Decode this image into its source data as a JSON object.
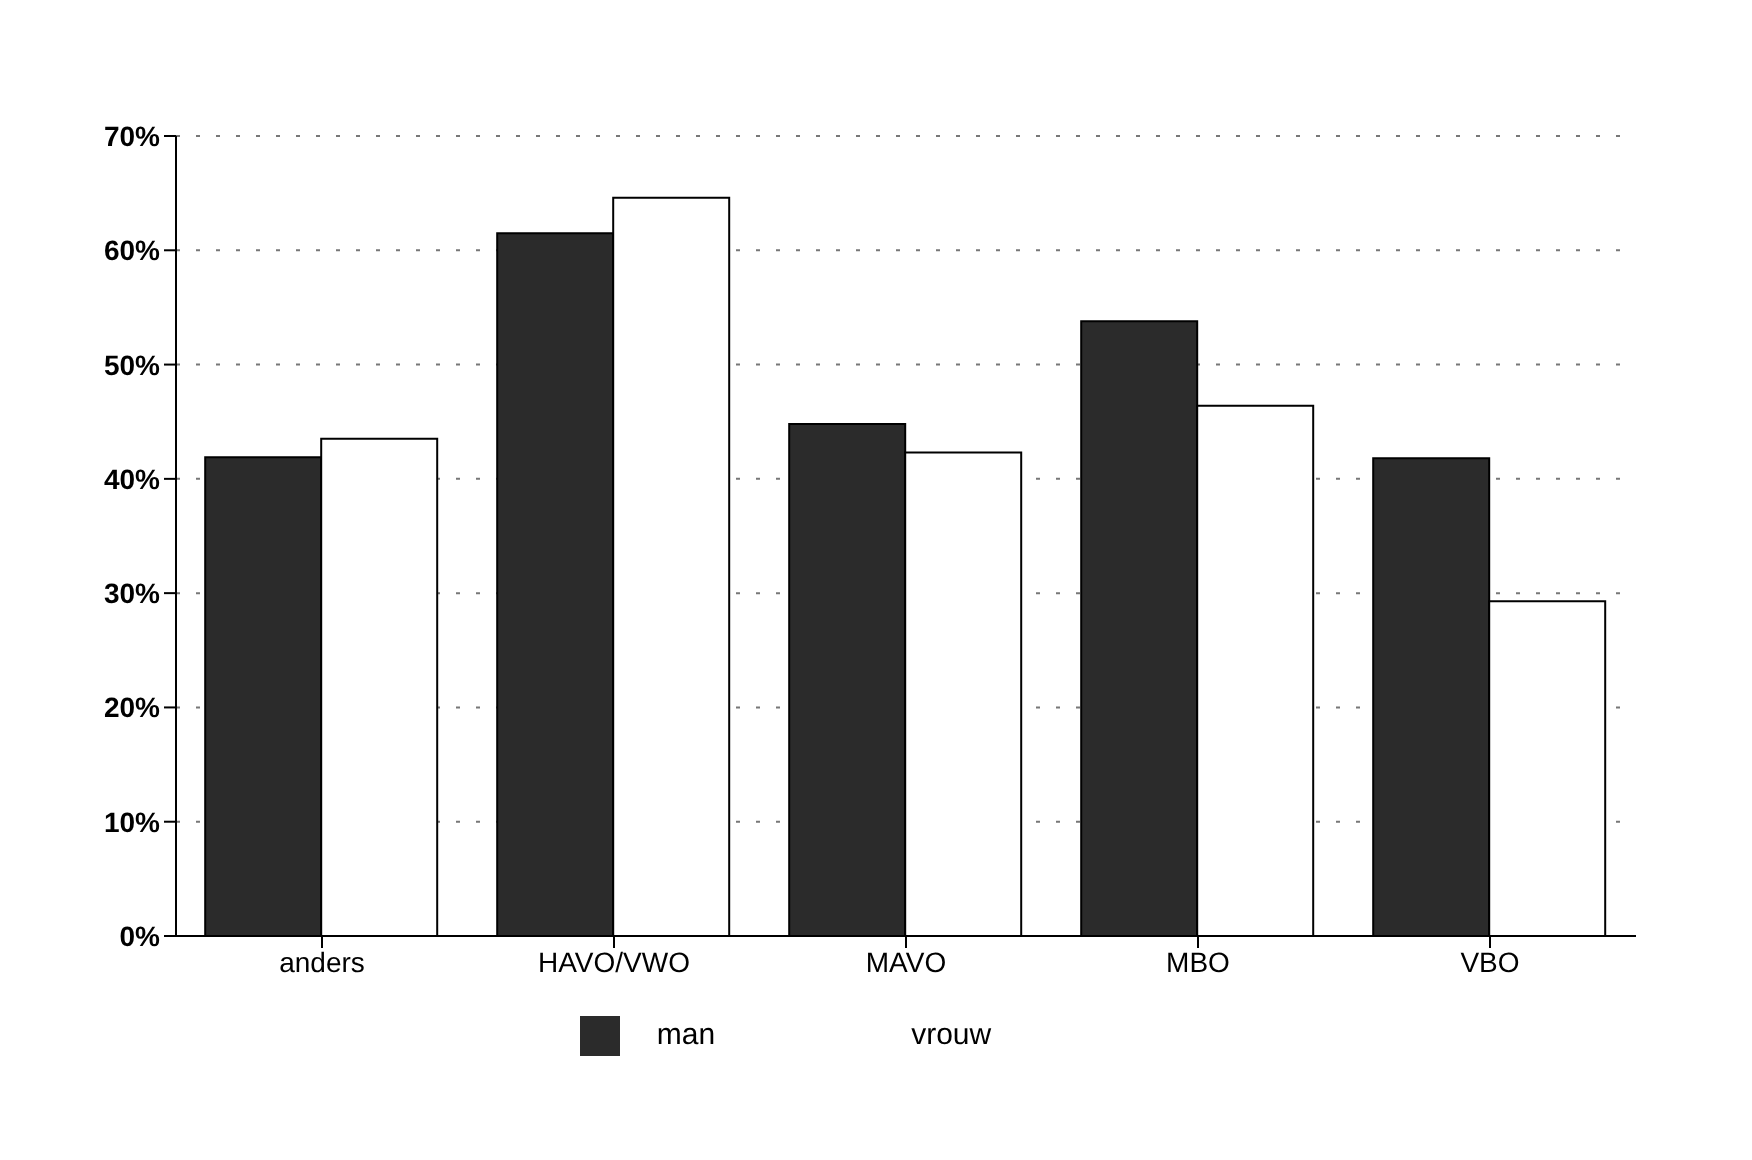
{
  "chart_data": {
    "type": "bar",
    "categories": [
      "anders",
      "HAVO/VWO",
      "MAVO",
      "MBO",
      "VBO"
    ],
    "series": [
      {
        "name": "man",
        "color": "#2b2b2b",
        "values": [
          41.9,
          61.5,
          44.8,
          53.8,
          41.8
        ]
      },
      {
        "name": "vrouw",
        "color": "#ffffff",
        "values": [
          43.5,
          64.6,
          42.3,
          46.4,
          29.3
        ]
      }
    ],
    "ylim": [
      0,
      70
    ],
    "yticks": [
      {
        "value": 0,
        "label": "0%"
      },
      {
        "value": 10,
        "label": "10%"
      },
      {
        "value": 20,
        "label": "20%"
      },
      {
        "value": 30,
        "label": "30%"
      },
      {
        "value": 40,
        "label": "40%"
      },
      {
        "value": 50,
        "label": "50%"
      },
      {
        "value": 60,
        "label": "60%"
      },
      {
        "value": 70,
        "label": "70%"
      }
    ],
    "grid": "y",
    "legend": "bottom"
  }
}
